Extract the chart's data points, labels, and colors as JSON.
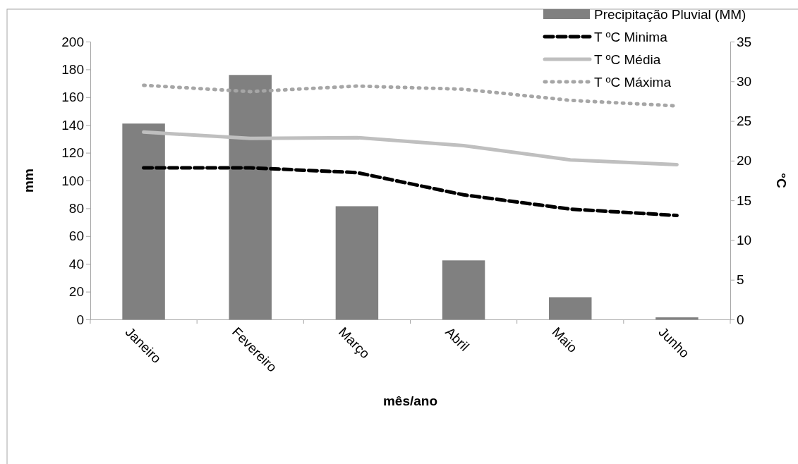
{
  "chart_data": {
    "type": "bar",
    "xlabel": "mês/ano",
    "ylabel": "mm",
    "y2label": "°C",
    "categories": [
      "Janeiro",
      "Fevereiro",
      "Março",
      "Abril",
      "Maio",
      "Junho"
    ],
    "series": [
      {
        "name": "Precipitação Pluvial (MM)",
        "type": "bar",
        "color": "#808080",
        "values": [
          141,
          176,
          81.5,
          42.5,
          16,
          1.5
        ]
      },
      {
        "name": "T ºC Minima",
        "type": "line",
        "axis": "y2",
        "color": "#000000",
        "line_style": "dashed",
        "values": [
          19.1,
          19.1,
          18.5,
          15.7,
          13.9,
          13.1
        ]
      },
      {
        "name": "T ºC Média",
        "type": "line",
        "axis": "y2",
        "color": "#bfbfbf",
        "line_style": "solid",
        "values": [
          23.6,
          22.8,
          22.9,
          21.9,
          20.1,
          19.5
        ]
      },
      {
        "name": "T ºC Máxima",
        "type": "line",
        "axis": "y2",
        "color": "#a6a6a6",
        "line_style": "dotted",
        "values": [
          29.5,
          28.7,
          29.4,
          29.0,
          27.6,
          26.9
        ]
      }
    ],
    "ylim": [
      0,
      200
    ],
    "yticks": [
      0,
      20,
      40,
      60,
      80,
      100,
      120,
      140,
      160,
      180,
      200
    ],
    "y2lim": [
      0,
      35
    ],
    "y2ticks": [
      0,
      5,
      10,
      15,
      20,
      25,
      30,
      35
    ],
    "legend": "top right",
    "grid": false
  }
}
